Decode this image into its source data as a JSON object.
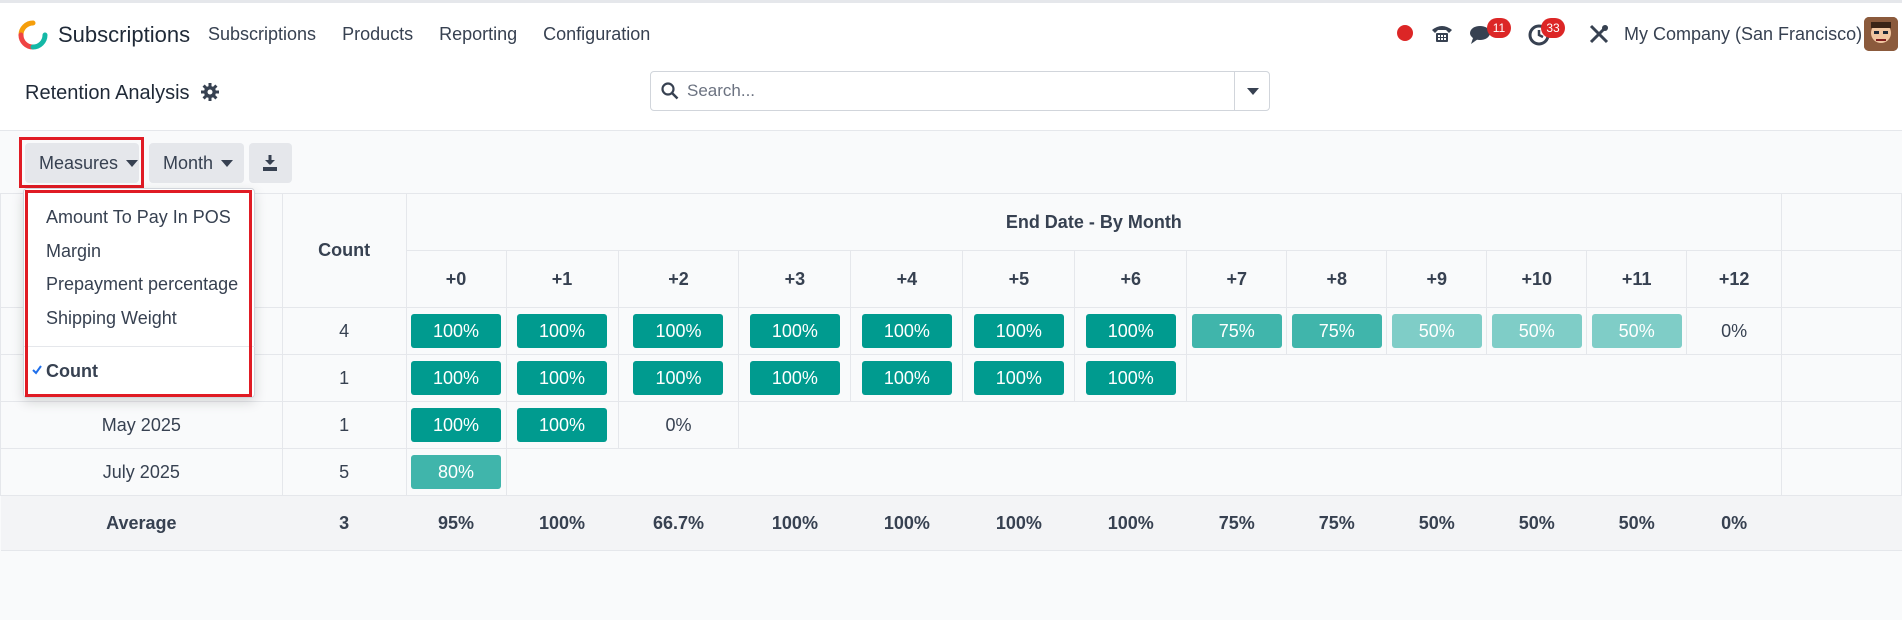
{
  "navbar": {
    "app_name": "Subscriptions",
    "menu": [
      "Subscriptions",
      "Products",
      "Reporting",
      "Configuration"
    ],
    "messages_count": "11",
    "activities_count": "33",
    "company": "My Company (San Francisco)"
  },
  "control_panel": {
    "title": "Retention Analysis",
    "search_placeholder": "Search..."
  },
  "toolbar": {
    "measures_label": "Measures",
    "interval_label": "Month"
  },
  "measures_menu": {
    "items": [
      "Amount To Pay In POS",
      "Margin",
      "Prepayment percentage",
      "Shipping Weight"
    ],
    "checked_item": "Count"
  },
  "table": {
    "count_header": "Count",
    "group_header": "End Date - By Month",
    "periods": [
      "+0",
      "+1",
      "+2",
      "+3",
      "+4",
      "+5",
      "+6",
      "+7",
      "+8",
      "+9",
      "+10",
      "+11",
      "+12"
    ],
    "rows": [
      {
        "label": "",
        "count": "4",
        "cells": [
          "100%",
          "100%",
          "100%",
          "100%",
          "100%",
          "100%",
          "100%",
          "75%",
          "75%",
          "50%",
          "50%",
          "50%",
          "0%"
        ]
      },
      {
        "label": "",
        "count": "1",
        "cells": [
          "100%",
          "100%",
          "100%",
          "100%",
          "100%",
          "100%",
          "100%"
        ]
      },
      {
        "label": "May 2025",
        "count": "1",
        "cells": [
          "100%",
          "100%",
          "0%"
        ]
      },
      {
        "label": "July 2025",
        "count": "5",
        "cells": [
          "80%"
        ]
      }
    ],
    "average": {
      "label": "Average",
      "count": "3",
      "cells": [
        "95%",
        "100%",
        "66.7%",
        "100%",
        "100%",
        "100%",
        "100%",
        "75%",
        "75%",
        "50%",
        "50%",
        "50%",
        "0%"
      ]
    }
  },
  "colors": {
    "teal_full": "#009b8f",
    "teal_75": "#40b5ab",
    "teal_50": "#7fcdc7",
    "highlight_red": "#e01b24"
  }
}
